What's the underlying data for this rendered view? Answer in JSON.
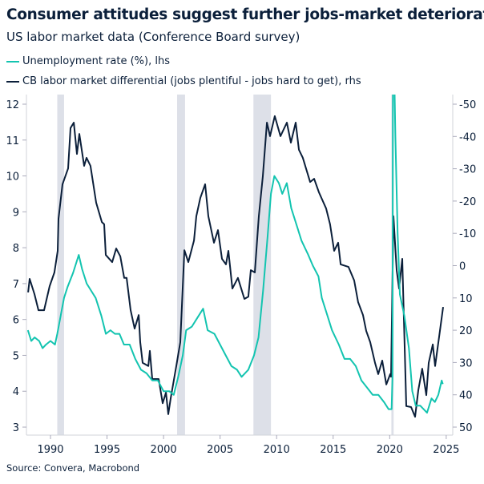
{
  "chart_data": {
    "type": "line",
    "title": "Consumer attitudes suggest further jobs-market deterioration",
    "subtitle": "US labor market data (Conference Board survey)",
    "source": "Source: Convera, Macrobond",
    "colors": {
      "unemployment": "#13c4b0",
      "differential": "#0b1f3a",
      "recession": "#dde0e8"
    },
    "legend_placement": "top-left",
    "grid": false,
    "x_range": [
      1988,
      2025.4
    ],
    "x_ticks": [
      "1990",
      "1995",
      "2000",
      "2005",
      "2010",
      "2015",
      "2020",
      "2025"
    ],
    "y_left": {
      "range": [
        2.75,
        12.25
      ],
      "ticks": [
        "3",
        "4",
        "5",
        "6",
        "7",
        "8",
        "9",
        "10",
        "11",
        "12"
      ]
    },
    "y_right": {
      "range": [
        -50,
        50
      ],
      "inverted": true,
      "ticks": [
        "-50",
        "-40",
        "-30",
        "-20",
        "-10",
        "0",
        "10",
        "20",
        "30",
        "40",
        "50"
      ]
    },
    "recessions": [
      [
        1990.6,
        1991.2
      ],
      [
        2001.2,
        2001.9
      ],
      [
        2007.95,
        2009.5
      ],
      [
        2020.15,
        2020.35
      ]
    ],
    "series": [
      {
        "name": "Unemployment rate (%), lhs",
        "axis": "left",
        "points": [
          [
            1988.0,
            5.7
          ],
          [
            1988.3,
            5.4
          ],
          [
            1988.6,
            5.5
          ],
          [
            1989.0,
            5.4
          ],
          [
            1989.3,
            5.2
          ],
          [
            1989.6,
            5.3
          ],
          [
            1990.0,
            5.4
          ],
          [
            1990.4,
            5.3
          ],
          [
            1990.6,
            5.6
          ],
          [
            1990.9,
            6.1
          ],
          [
            1991.2,
            6.6
          ],
          [
            1991.5,
            6.9
          ],
          [
            1992.0,
            7.3
          ],
          [
            1992.5,
            7.8
          ],
          [
            1992.8,
            7.4
          ],
          [
            1993.2,
            7.0
          ],
          [
            1993.6,
            6.8
          ],
          [
            1994.0,
            6.6
          ],
          [
            1994.5,
            6.1
          ],
          [
            1994.9,
            5.6
          ],
          [
            1995.3,
            5.7
          ],
          [
            1995.7,
            5.6
          ],
          [
            1996.1,
            5.6
          ],
          [
            1996.5,
            5.3
          ],
          [
            1997.0,
            5.3
          ],
          [
            1997.5,
            4.9
          ],
          [
            1998.0,
            4.6
          ],
          [
            1998.5,
            4.5
          ],
          [
            1999.0,
            4.3
          ],
          [
            1999.5,
            4.3
          ],
          [
            2000.0,
            4.0
          ],
          [
            2000.5,
            4.0
          ],
          [
            2000.9,
            3.9
          ],
          [
            2001.3,
            4.4
          ],
          [
            2001.7,
            5.0
          ],
          [
            2002.0,
            5.7
          ],
          [
            2002.5,
            5.8
          ],
          [
            2002.9,
            6.0
          ],
          [
            2003.5,
            6.3
          ],
          [
            2003.9,
            5.7
          ],
          [
            2004.5,
            5.6
          ],
          [
            2005.0,
            5.3
          ],
          [
            2005.5,
            5.0
          ],
          [
            2006.0,
            4.7
          ],
          [
            2006.5,
            4.6
          ],
          [
            2006.9,
            4.4
          ],
          [
            2007.5,
            4.6
          ],
          [
            2008.0,
            5.0
          ],
          [
            2008.4,
            5.5
          ],
          [
            2008.8,
            6.8
          ],
          [
            2009.2,
            8.3
          ],
          [
            2009.5,
            9.5
          ],
          [
            2009.8,
            10.0
          ],
          [
            2010.2,
            9.8
          ],
          [
            2010.5,
            9.5
          ],
          [
            2010.9,
            9.8
          ],
          [
            2011.3,
            9.1
          ],
          [
            2011.8,
            8.6
          ],
          [
            2012.2,
            8.2
          ],
          [
            2012.8,
            7.8
          ],
          [
            2013.2,
            7.5
          ],
          [
            2013.7,
            7.2
          ],
          [
            2014.0,
            6.6
          ],
          [
            2014.5,
            6.1
          ],
          [
            2014.9,
            5.7
          ],
          [
            2015.5,
            5.3
          ],
          [
            2016.0,
            4.9
          ],
          [
            2016.5,
            4.9
          ],
          [
            2017.0,
            4.7
          ],
          [
            2017.5,
            4.3
          ],
          [
            2018.0,
            4.1
          ],
          [
            2018.5,
            3.9
          ],
          [
            2019.0,
            3.9
          ],
          [
            2019.5,
            3.7
          ],
          [
            2019.9,
            3.5
          ],
          [
            2020.17,
            3.5
          ],
          [
            2020.25,
            4.4
          ],
          [
            2020.3,
            14.8
          ],
          [
            2020.5,
            11.1
          ],
          [
            2020.7,
            8.4
          ],
          [
            2020.9,
            6.7
          ],
          [
            2021.3,
            6.1
          ],
          [
            2021.7,
            5.2
          ],
          [
            2022.0,
            4.0
          ],
          [
            2022.3,
            3.6
          ],
          [
            2022.7,
            3.6
          ],
          [
            2023.0,
            3.5
          ],
          [
            2023.3,
            3.4
          ],
          [
            2023.7,
            3.8
          ],
          [
            2024.0,
            3.7
          ],
          [
            2024.3,
            3.9
          ],
          [
            2024.6,
            4.3
          ],
          [
            2024.7,
            4.2
          ]
        ]
      },
      {
        "name": "CB labor market differential (jobs plentiful - jobs hard to get), rhs",
        "axis": "right",
        "points": [
          [
            1988.02,
            8.3
          ],
          [
            1988.16,
            4.1
          ],
          [
            1988.58,
            8.8
          ],
          [
            1988.94,
            13.8
          ],
          [
            1989.43,
            13.8
          ],
          [
            1989.93,
            6.3
          ],
          [
            1990.35,
            2.1
          ],
          [
            1990.64,
            -4.6
          ],
          [
            1990.71,
            -14.5
          ],
          [
            1991.06,
            -25.2
          ],
          [
            1991.56,
            -30.1
          ],
          [
            1991.77,
            -42.6
          ],
          [
            1992.06,
            -44.3
          ],
          [
            1992.34,
            -34.6
          ],
          [
            1992.55,
            -40.8
          ],
          [
            1992.98,
            -30.9
          ],
          [
            1993.19,
            -33.4
          ],
          [
            1993.54,
            -30.9
          ],
          [
            1994.04,
            -19.5
          ],
          [
            1994.54,
            -13.5
          ],
          [
            1994.75,
            -12.8
          ],
          [
            1994.89,
            -3.3
          ],
          [
            1995.46,
            -1.1
          ],
          [
            1995.81,
            -5.3
          ],
          [
            1996.17,
            -2.9
          ],
          [
            1996.52,
            3.8
          ],
          [
            1996.73,
            3.8
          ],
          [
            1997.09,
            13.8
          ],
          [
            1997.44,
            19.5
          ],
          [
            1997.8,
            15.3
          ],
          [
            1997.94,
            23.7
          ],
          [
            1998.15,
            30.1
          ],
          [
            1998.65,
            31.1
          ],
          [
            1998.79,
            26.4
          ],
          [
            1999.0,
            35.1
          ],
          [
            1999.57,
            35.1
          ],
          [
            1999.92,
            42.6
          ],
          [
            2000.21,
            39.3
          ],
          [
            2000.42,
            46.0
          ],
          [
            2000.63,
            41.1
          ],
          [
            2001.13,
            31.1
          ],
          [
            2001.48,
            23.7
          ],
          [
            2001.84,
            -4.8
          ],
          [
            2002.19,
            -1.1
          ],
          [
            2002.69,
            -7.8
          ],
          [
            2002.9,
            -15.3
          ],
          [
            2003.25,
            -21.0
          ],
          [
            2003.68,
            -25.2
          ],
          [
            2003.96,
            -15.3
          ],
          [
            2004.46,
            -7.1
          ],
          [
            2004.81,
            -11.0
          ],
          [
            2005.17,
            -2.1
          ],
          [
            2005.52,
            -0.4
          ],
          [
            2005.73,
            -4.6
          ],
          [
            2006.09,
            7.1
          ],
          [
            2006.58,
            3.8
          ],
          [
            2007.15,
            10.3
          ],
          [
            2007.5,
            9.6
          ],
          [
            2007.72,
            1.4
          ],
          [
            2008.07,
            2.1
          ],
          [
            2008.43,
            -15.3
          ],
          [
            2008.78,
            -27.7
          ],
          [
            2009.14,
            -44.3
          ],
          [
            2009.42,
            -40.1
          ],
          [
            2009.84,
            -46.3
          ],
          [
            2010.34,
            -40.1
          ],
          [
            2010.91,
            -44.3
          ],
          [
            2011.26,
            -38.1
          ],
          [
            2011.69,
            -44.3
          ],
          [
            2011.97,
            -35.9
          ],
          [
            2012.32,
            -33.4
          ],
          [
            2012.96,
            -25.9
          ],
          [
            2013.32,
            -26.9
          ],
          [
            2013.74,
            -22.7
          ],
          [
            2014.38,
            -17.7
          ],
          [
            2014.73,
            -12.8
          ],
          [
            2015.09,
            -4.6
          ],
          [
            2015.44,
            -7.1
          ],
          [
            2015.66,
            -0.4
          ],
          [
            2016.36,
            0.4
          ],
          [
            2016.86,
            4.6
          ],
          [
            2017.21,
            11.3
          ],
          [
            2017.64,
            15.3
          ],
          [
            2017.92,
            20.2
          ],
          [
            2018.28,
            23.7
          ],
          [
            2018.7,
            30.1
          ],
          [
            2018.99,
            33.6
          ],
          [
            2019.34,
            29.4
          ],
          [
            2019.7,
            36.8
          ],
          [
            2020.05,
            33.6
          ],
          [
            2020.12,
            34.4
          ],
          [
            2020.33,
            -15.3
          ],
          [
            2020.62,
            1.4
          ],
          [
            2020.83,
            7.1
          ],
          [
            2021.11,
            -2.1
          ],
          [
            2021.47,
            43.5
          ],
          [
            2021.89,
            43.8
          ],
          [
            2022.25,
            46.8
          ],
          [
            2022.53,
            38.6
          ],
          [
            2022.88,
            31.9
          ],
          [
            2023.24,
            40.1
          ],
          [
            2023.45,
            30.1
          ],
          [
            2023.81,
            24.4
          ],
          [
            2024.02,
            31.1
          ],
          [
            2024.37,
            22.0
          ],
          [
            2024.73,
            12.8
          ]
        ]
      }
    ]
  }
}
